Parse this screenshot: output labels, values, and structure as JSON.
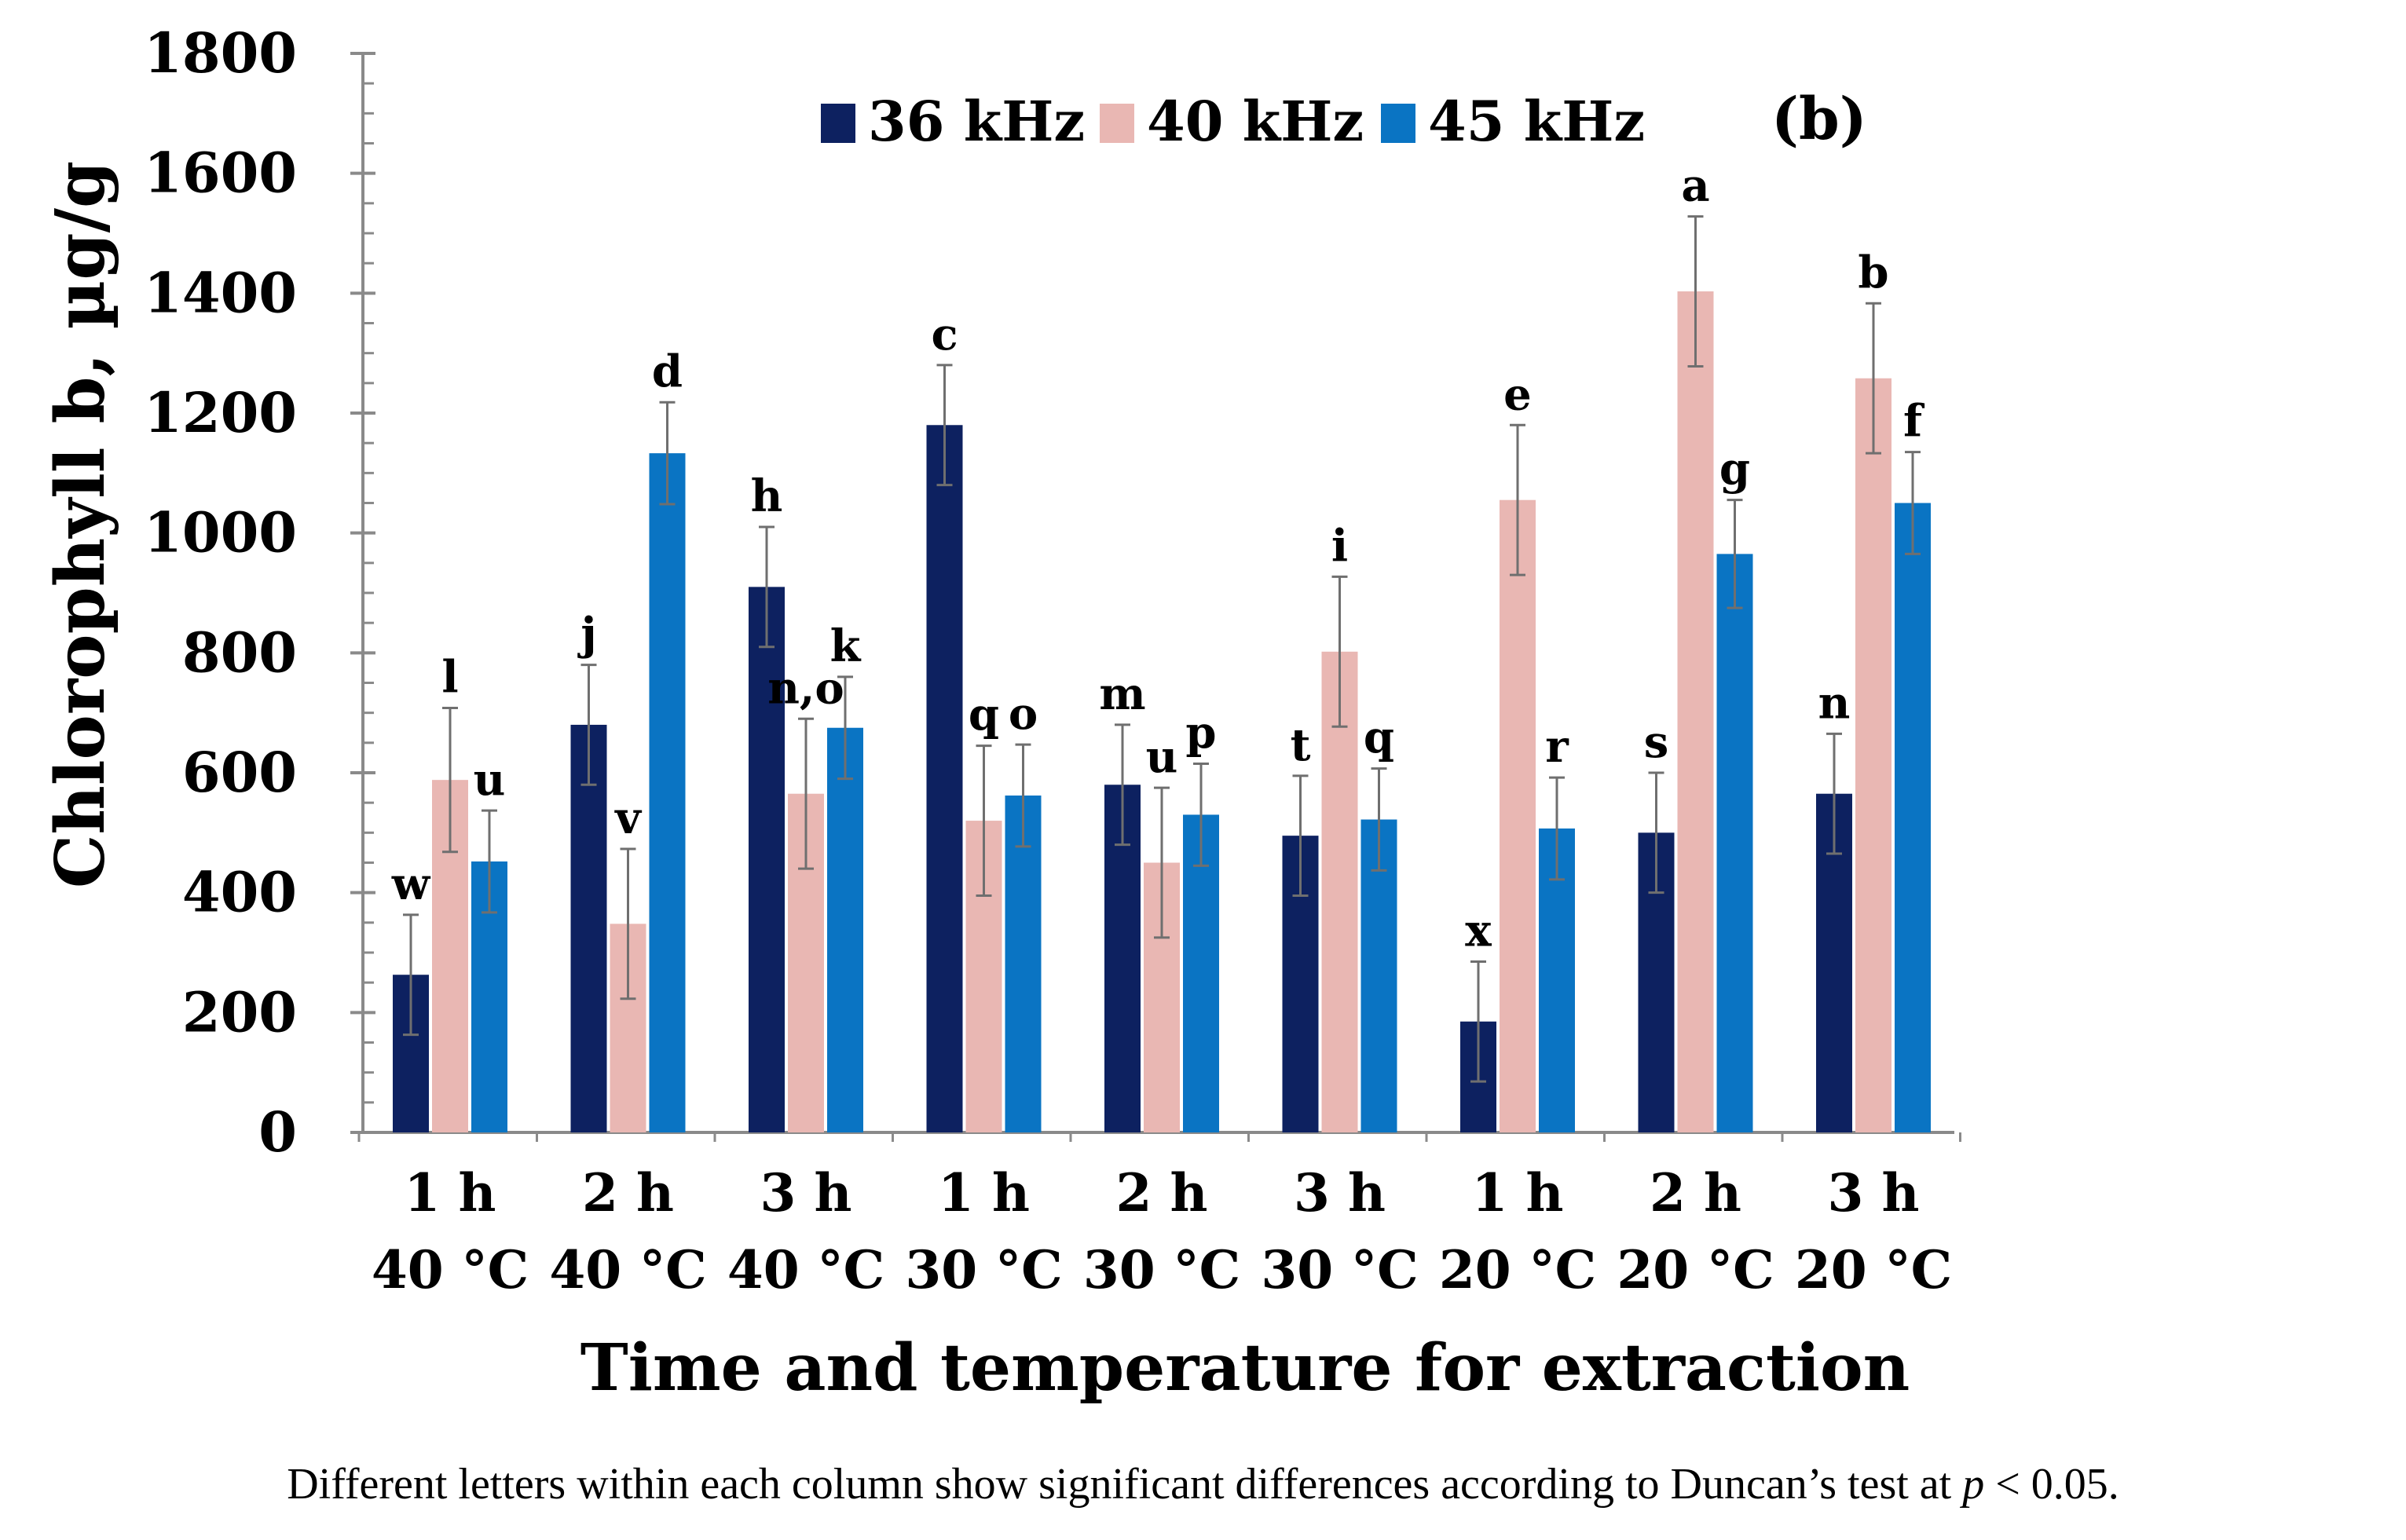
{
  "chart_data": {
    "type": "bar",
    "panel_label": "(b)",
    "ylabel": "Chlorophyll b, µg/g",
    "xlabel": "Time and temperature for extraction",
    "ylim": [
      0,
      1800
    ],
    "yticks": [
      0,
      200,
      400,
      600,
      800,
      1000,
      1200,
      1400,
      1600,
      1800
    ],
    "categories": [
      {
        "time": "1 h",
        "temp": "40 °C"
      },
      {
        "time": "2 h",
        "temp": "40 °C"
      },
      {
        "time": "3 h",
        "temp": "40 °C"
      },
      {
        "time": "1 h",
        "temp": "30 °C"
      },
      {
        "time": "2 h",
        "temp": "30 °C"
      },
      {
        "time": "3 h",
        "temp": "30 °C"
      },
      {
        "time": "1 h",
        "temp": "20 °C"
      },
      {
        "time": "2 h",
        "temp": "20 °C"
      },
      {
        "time": "3 h",
        "temp": "20 °C"
      }
    ],
    "series": [
      {
        "name": "36 kHz",
        "color": "#0d2160",
        "values": [
          263,
          680,
          910,
          1180,
          580,
          495,
          185,
          500,
          565
        ],
        "errors": [
          100,
          100,
          100,
          100,
          100,
          100,
          100,
          100,
          100
        ],
        "letters": [
          "w",
          "j",
          "h",
          "c",
          "m",
          "t",
          "x",
          "s",
          "n"
        ]
      },
      {
        "name": "40 kHz",
        "color": "#e9b7b3",
        "values": [
          588,
          348,
          565,
          520,
          450,
          802,
          1055,
          1403,
          1258
        ],
        "errors": [
          120,
          125,
          125,
          125,
          125,
          125,
          125,
          125,
          125
        ],
        "letters": [
          "l",
          "v",
          "n,o",
          "q",
          "u",
          "i",
          "e",
          "a",
          "b"
        ]
      },
      {
        "name": "45 kHz",
        "color": "#0a74c3",
        "values": [
          452,
          1133,
          675,
          562,
          530,
          522,
          507,
          965,
          1050
        ],
        "errors": [
          85,
          85,
          85,
          85,
          85,
          85,
          85,
          90,
          85
        ],
        "letters": [
          "u",
          "d",
          "k",
          "o",
          "p",
          "q",
          "r",
          "g",
          "f"
        ]
      }
    ],
    "legend_position": "top"
  },
  "caption": {
    "before": "Different letters within each column show significant differences according to Duncan’s test at ",
    "var": "p",
    "after": " < 0.05."
  }
}
